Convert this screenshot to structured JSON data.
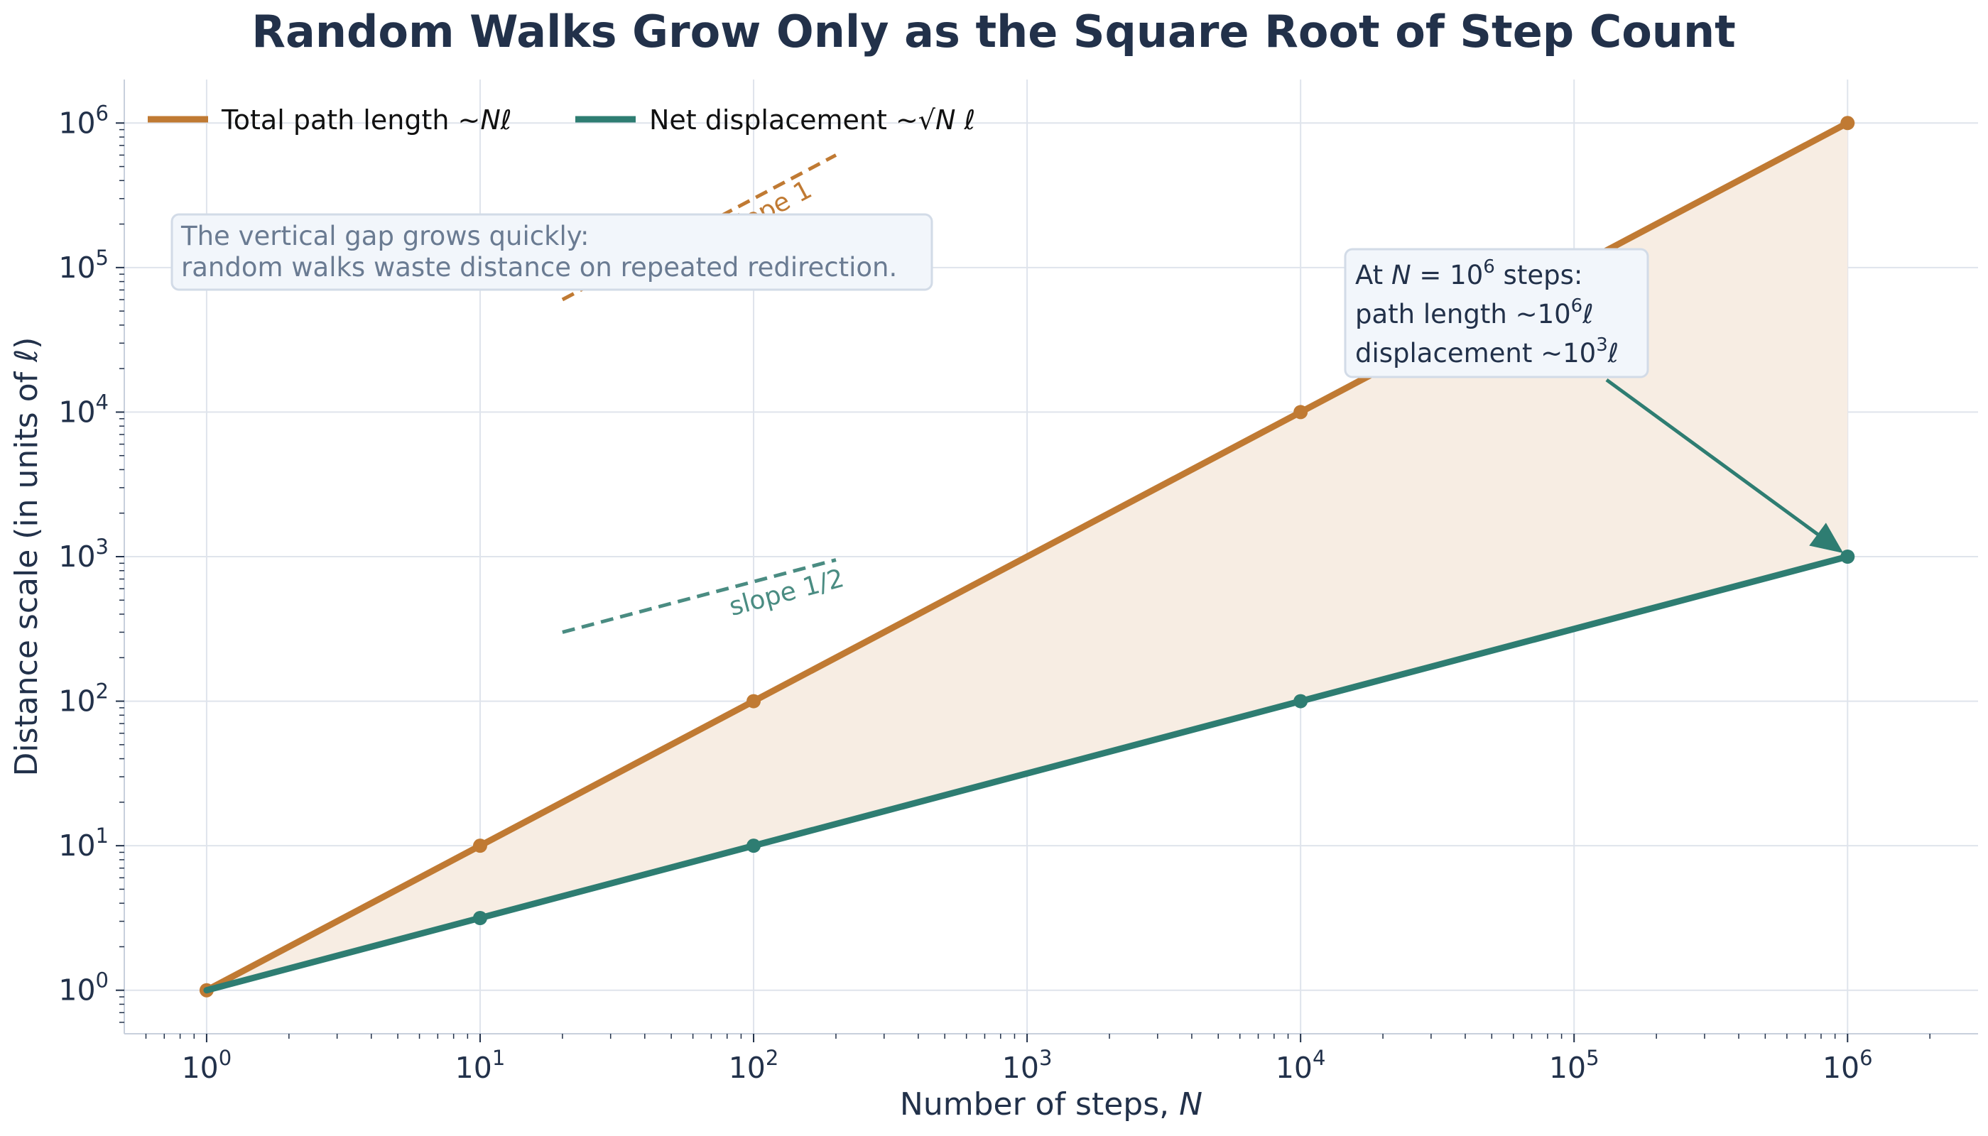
{
  "chart_data": {
    "type": "line",
    "title": "Random Walks Grow Only as the Square Root of Step Count",
    "xlabel": "Number of steps, N",
    "ylabel": "Distance scale (in units of ℓ)",
    "x_scale": "log",
    "y_scale": "log",
    "xlim": [
      0.5,
      3000000
    ],
    "ylim": [
      0.5,
      2000000
    ],
    "x_ticks": [
      1,
      10,
      100,
      1000,
      10000,
      100000,
      1000000
    ],
    "y_ticks": [
      1,
      10,
      100,
      1000,
      10000,
      100000,
      1000000
    ],
    "grid": true,
    "legend_position": "top-left",
    "series": [
      {
        "name": "Total path length ~Nℓ",
        "color": "#c07a33",
        "x": [
          1,
          10,
          100,
          10000,
          1000000
        ],
        "y": [
          1,
          10,
          100,
          10000,
          1000000
        ],
        "line_points": [
          [
            1,
            1
          ],
          [
            1000000,
            1000000
          ]
        ]
      },
      {
        "name": "Net displacement ~√N ℓ",
        "color": "#2e7d72",
        "x": [
          10,
          100,
          10000,
          1000000
        ],
        "y": [
          3.16,
          10,
          100,
          1000
        ],
        "line_points": [
          [
            1,
            1
          ],
          [
            1000000,
            1000
          ]
        ]
      }
    ],
    "fill_between_color": "#f7ede3",
    "slope_guides": [
      {
        "label": "slope 1",
        "color": "#c07a33",
        "x": [
          20,
          200
        ],
        "y": [
          60000,
          600000
        ]
      },
      {
        "label": "slope 1/2",
        "color": "#4a8c82",
        "x": [
          20,
          200
        ],
        "y": [
          300,
          950
        ]
      }
    ],
    "annotations": {
      "gap_note": {
        "line1": "The vertical gap grows quickly:",
        "line2": "random walks waste distance on repeated redirection."
      },
      "callout": {
        "line1": "At N = 10⁶ steps:",
        "line2": "path length ~10⁶ℓ",
        "line3": "displacement ~10³ℓ",
        "arrow_target": [
          1000000,
          1000
        ]
      }
    }
  },
  "colors": {
    "text": "#22314a",
    "grid": "#dfe4ec",
    "axis": "#c8d0dc",
    "box_fill": "#f2f6fb",
    "box_stroke": "#d2dbe7"
  }
}
